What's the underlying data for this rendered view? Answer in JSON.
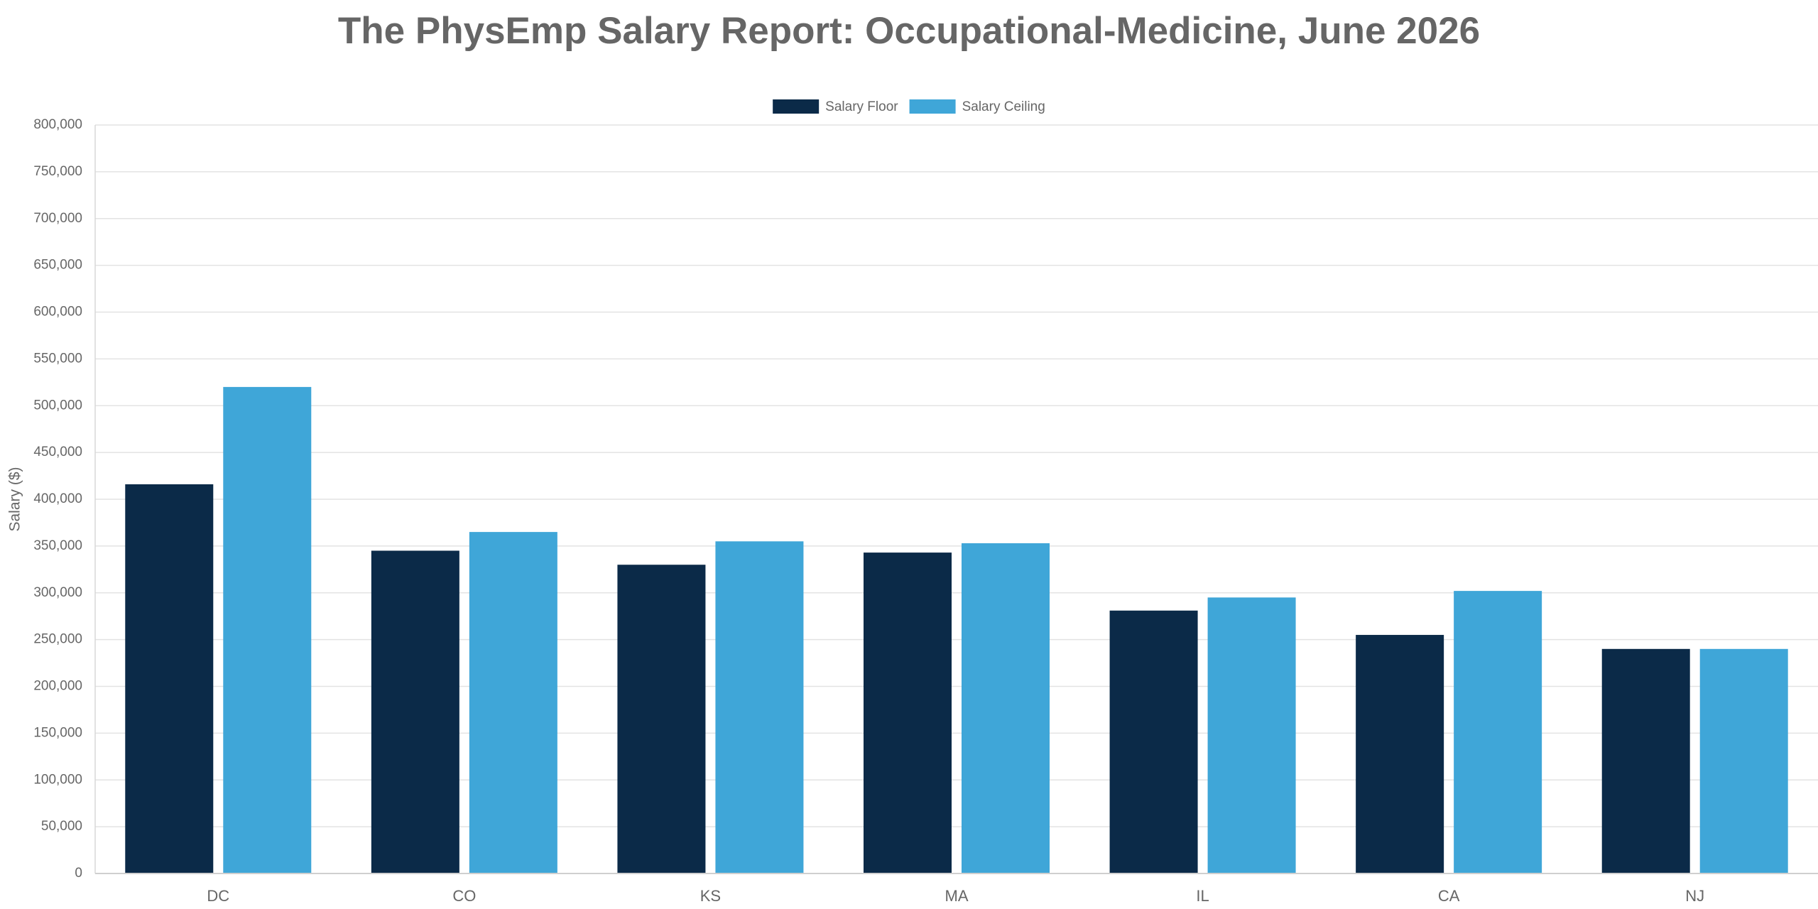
{
  "chart_data": {
    "type": "bar",
    "title": "The PhysEmp Salary Report: Occupational-Medicine, June 2026",
    "y_label": "Salary ($)",
    "categories": [
      "DC",
      "CO",
      "KS",
      "MA",
      "IL",
      "CA",
      "NJ"
    ],
    "series": [
      {
        "name": "Salary Floor",
        "color": "#0b2a48",
        "values": [
          416000,
          345000,
          330000,
          343000,
          281000,
          255000,
          240000
        ]
      },
      {
        "name": "Salary Ceiling",
        "color": "#3fa6d8",
        "values": [
          520000,
          365000,
          355000,
          353000,
          295000,
          302000,
          240000
        ]
      }
    ],
    "ylim": [
      0,
      800000
    ],
    "yticks": [
      0,
      {
        "value": 50000,
        "label": "50,000"
      },
      {
        "value": 100000,
        "label": "100,000"
      },
      {
        "value": 150000,
        "label": "150,000"
      },
      {
        "value": 200000,
        "label": "200,000"
      },
      {
        "value": 250000,
        "label": "250,000"
      },
      {
        "value": 300000,
        "label": "300,000"
      },
      {
        "value": 350000,
        "label": "350,000"
      },
      {
        "value": 400000,
        "label": "400,000"
      },
      {
        "value": 450000,
        "label": "450,000"
      },
      {
        "value": 500000,
        "label": "500,000"
      },
      {
        "value": 550000,
        "label": "550,000"
      },
      {
        "value": 600000,
        "label": "600,000"
      },
      {
        "value": 650000,
        "label": "650,000"
      },
      {
        "value": 700000,
        "label": "700,000"
      },
      {
        "value": 750000,
        "label": "750,000"
      },
      {
        "value": 800000,
        "label": "800,000"
      }
    ],
    "grid": true,
    "legend": "top"
  }
}
